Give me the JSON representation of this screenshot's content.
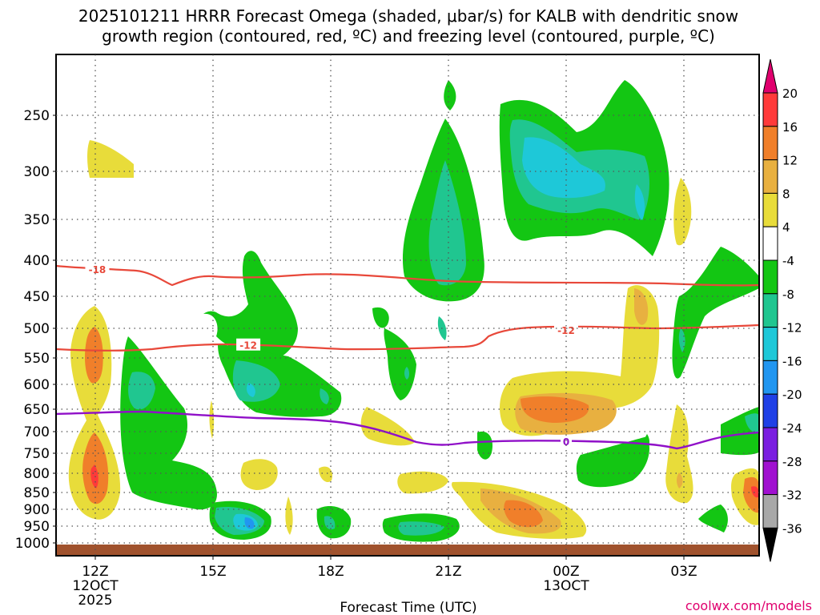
{
  "chart_data": {
    "type": "heatmap",
    "title_line1": "2025101211 HRRR Forecast Omega (shaded, μbar/s) for KALB with dendritic snow",
    "title_line2": "growth region (contoured, red, ºC) and freezing level (contoured, purple, ºC)",
    "xlabel": "Forecast Time (UTC)",
    "credit": "coolwx.com/models",
    "y_ticks": [
      "250",
      "300",
      "350",
      "400",
      "450",
      "500",
      "550",
      "600",
      "650",
      "700",
      "750",
      "800",
      "850",
      "900",
      "950",
      "1000"
    ],
    "x_ticks": [
      {
        "label": "12Z",
        "sub": [
          "12OCT",
          "2025"
        ]
      },
      {
        "label": "15Z",
        "sub": []
      },
      {
        "label": "18Z",
        "sub": []
      },
      {
        "label": "21Z",
        "sub": []
      },
      {
        "label": "00Z",
        "sub": [
          "13OCT"
        ]
      },
      {
        "label": "03Z",
        "sub": []
      }
    ],
    "colorbar_labels": [
      "20",
      "16",
      "12",
      "8",
      "4",
      "-4",
      "-8",
      "-12",
      "-16",
      "-20",
      "-24",
      "-28",
      "-32",
      "-36"
    ],
    "colorbar_colors": [
      "#e0006e",
      "#ff3a3a",
      "#f07f2a",
      "#e8b040",
      "#e8dc3a",
      "#ffffff",
      "#13c613",
      "#20c690",
      "#1ec8d8",
      "#2196f0",
      "#1f40e6",
      "#7a1ee0",
      "#a010d0",
      "#a8a8a8",
      "#000000"
    ],
    "contour_labels": [
      {
        "text": "-18",
        "color": "#e8483a",
        "hour": 12.05,
        "p": 412
      },
      {
        "text": "-12",
        "color": "#e8483a",
        "hour": 15.9,
        "p": 528
      },
      {
        "text": "-12",
        "color": "#e8483a",
        "hour": 24.0,
        "p": 503
      },
      {
        "text": "0",
        "color": "#9010c8",
        "hour": 24.0,
        "p": 722
      }
    ]
  }
}
